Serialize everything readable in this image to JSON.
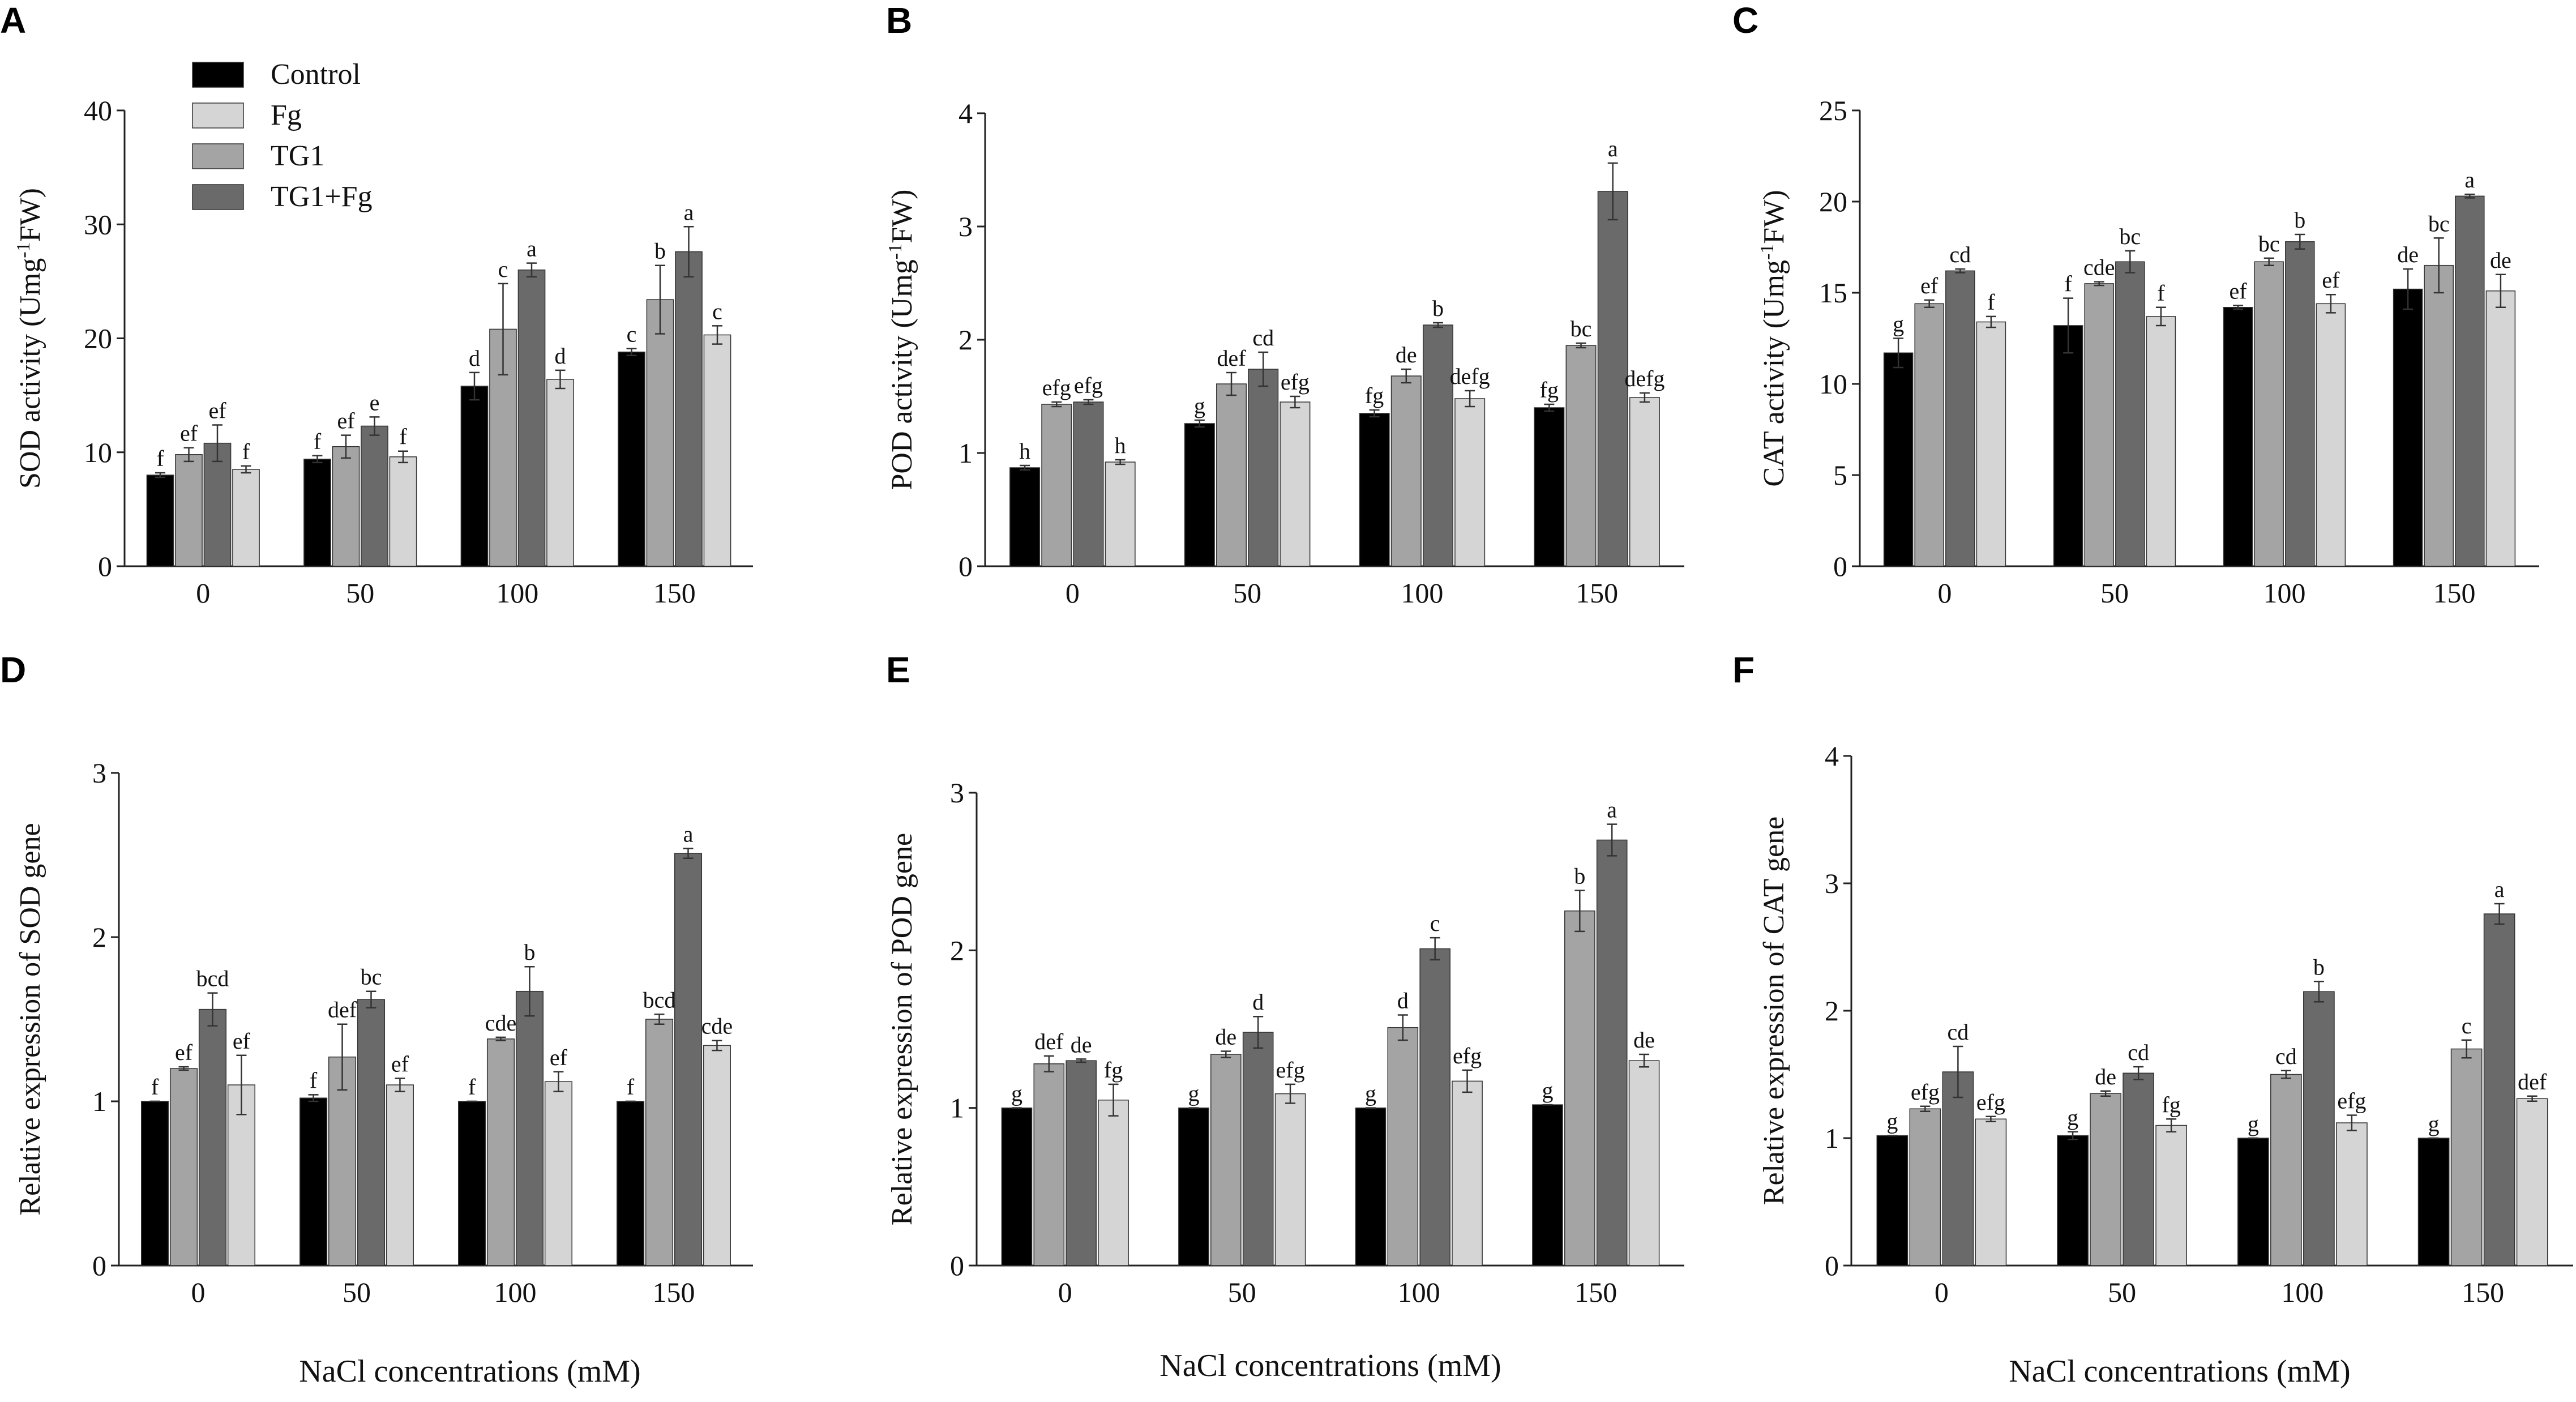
{
  "legend": [
    {
      "label": "Control",
      "color": "#000000"
    },
    {
      "label": "Fg",
      "color": "#d5d5d5"
    },
    {
      "label": "TG1",
      "color": "#a4a4a4"
    },
    {
      "label": "TG1+Fg",
      "color": "#6a6a6a"
    }
  ],
  "x_title": "NaCl concentrations (mM)",
  "chart_data": [
    {
      "type": "bar",
      "panel": "A",
      "title": "",
      "xlabel": "",
      "ylabel": "SOD activity (Umg-1FW)",
      "categories": [
        "0",
        "50",
        "100",
        "150"
      ],
      "ylim": [
        0,
        40
      ],
      "yticks": [
        0,
        10,
        20,
        30,
        40
      ],
      "series": [
        {
          "name": "Control",
          "values": [
            8.0,
            9.4,
            15.8,
            18.8
          ],
          "errors": [
            0.2,
            0.3,
            1.2,
            0.3
          ],
          "letters": [
            "f",
            "f",
            "d",
            "c"
          ]
        },
        {
          "name": "TG1",
          "values": [
            9.8,
            10.5,
            20.8,
            23.4
          ],
          "errors": [
            0.6,
            1.0,
            4.0,
            3.0
          ],
          "letters": [
            "ef",
            "ef",
            "c",
            "b"
          ]
        },
        {
          "name": "TG1+Fg",
          "values": [
            10.8,
            12.3,
            26.0,
            27.6
          ],
          "errors": [
            1.6,
            0.8,
            0.6,
            2.2
          ],
          "letters": [
            "ef",
            "e",
            "a",
            "a"
          ]
        },
        {
          "name": "Fg",
          "values": [
            8.5,
            9.6,
            16.4,
            20.3
          ],
          "errors": [
            0.3,
            0.5,
            0.8,
            0.8
          ],
          "letters": [
            "f",
            "f",
            "d",
            "c"
          ]
        }
      ]
    },
    {
      "type": "bar",
      "panel": "B",
      "title": "",
      "xlabel": "",
      "ylabel": "POD activity (Umg-1FW)",
      "categories": [
        "0",
        "50",
        "100",
        "150"
      ],
      "ylim": [
        0,
        4
      ],
      "yticks": [
        0,
        1,
        2,
        3,
        4
      ],
      "series": [
        {
          "name": "Control",
          "values": [
            0.87,
            1.26,
            1.35,
            1.4
          ],
          "errors": [
            0.02,
            0.03,
            0.03,
            0.03
          ],
          "letters": [
            "h",
            "g",
            "fg",
            "fg"
          ]
        },
        {
          "name": "TG1",
          "values": [
            1.43,
            1.61,
            1.68,
            1.95
          ],
          "errors": [
            0.02,
            0.1,
            0.06,
            0.02
          ],
          "letters": [
            "efg",
            "def",
            "de",
            "bc"
          ]
        },
        {
          "name": "TG1+Fg",
          "values": [
            1.45,
            1.74,
            2.13,
            3.31
          ],
          "errors": [
            0.02,
            0.15,
            0.02,
            0.25
          ],
          "letters": [
            "efg",
            "cd",
            "b",
            "a"
          ]
        },
        {
          "name": "Fg",
          "values": [
            0.92,
            1.45,
            1.48,
            1.49
          ],
          "errors": [
            0.02,
            0.05,
            0.07,
            0.04
          ],
          "letters": [
            "h",
            "efg",
            "defg",
            "defg"
          ]
        }
      ]
    },
    {
      "type": "bar",
      "panel": "C",
      "title": "",
      "xlabel": "",
      "ylabel": "CAT activity (Umg-1FW)",
      "categories": [
        "0",
        "50",
        "100",
        "150"
      ],
      "ylim": [
        0,
        25
      ],
      "yticks": [
        0,
        5,
        10,
        15,
        20,
        25
      ],
      "series": [
        {
          "name": "Control",
          "values": [
            11.7,
            13.2,
            14.2,
            15.2
          ],
          "errors": [
            0.8,
            1.5,
            0.1,
            1.1
          ],
          "letters": [
            "g",
            "f",
            "ef",
            "de"
          ]
        },
        {
          "name": "TG1",
          "values": [
            14.4,
            15.5,
            16.7,
            16.5
          ],
          "errors": [
            0.2,
            0.1,
            0.2,
            1.5
          ],
          "letters": [
            "ef",
            "cde",
            "bc",
            "bc"
          ]
        },
        {
          "name": "TG1+Fg",
          "values": [
            16.2,
            16.7,
            17.8,
            20.3
          ],
          "errors": [
            0.1,
            0.6,
            0.4,
            0.1
          ],
          "letters": [
            "cd",
            "bc",
            "b",
            "a"
          ]
        },
        {
          "name": "Fg",
          "values": [
            13.4,
            13.7,
            14.4,
            15.1
          ],
          "errors": [
            0.3,
            0.5,
            0.5,
            0.9
          ],
          "letters": [
            "f",
            "f",
            "ef",
            "de"
          ]
        }
      ]
    },
    {
      "type": "bar",
      "panel": "D",
      "title": "",
      "xlabel": "NaCl concentrations (mM)",
      "ylabel": "Relative expression of SOD gene",
      "categories": [
        "0",
        "50",
        "100",
        "150"
      ],
      "ylim": [
        0,
        3
      ],
      "yticks": [
        0,
        1,
        2,
        3
      ],
      "series": [
        {
          "name": "Control",
          "values": [
            1.0,
            1.02,
            1.0,
            1.0
          ],
          "errors": [
            0.0,
            0.02,
            0.0,
            0.0
          ],
          "letters": [
            "f",
            "f",
            "f",
            "f"
          ]
        },
        {
          "name": "TG1",
          "values": [
            1.2,
            1.27,
            1.38,
            1.5
          ],
          "errors": [
            0.01,
            0.2,
            0.01,
            0.03
          ],
          "letters": [
            "ef",
            "def",
            "cde",
            "bcd"
          ]
        },
        {
          "name": "TG1+Fg",
          "values": [
            1.56,
            1.62,
            1.67,
            2.51
          ],
          "errors": [
            0.1,
            0.05,
            0.15,
            0.03
          ],
          "letters": [
            "bcd",
            "bc",
            "b",
            "a"
          ]
        },
        {
          "name": "Fg",
          "values": [
            1.1,
            1.1,
            1.12,
            1.34
          ],
          "errors": [
            0.18,
            0.04,
            0.06,
            0.03
          ],
          "letters": [
            "ef",
            "ef",
            "ef",
            "cde"
          ]
        }
      ]
    },
    {
      "type": "bar",
      "panel": "E",
      "title": "",
      "xlabel": "NaCl concentrations (mM)",
      "ylabel": "Relative expression of POD gene",
      "categories": [
        "0",
        "50",
        "100",
        "150"
      ],
      "ylim": [
        0,
        3
      ],
      "yticks": [
        0,
        1,
        2,
        3
      ],
      "series": [
        {
          "name": "Control",
          "values": [
            1.0,
            1.0,
            1.0,
            1.02
          ],
          "errors": [
            0.0,
            0.0,
            0.0,
            0.0
          ],
          "letters": [
            "g",
            "g",
            "g",
            "g"
          ]
        },
        {
          "name": "TG1",
          "values": [
            1.28,
            1.34,
            1.51,
            2.25
          ],
          "errors": [
            0.05,
            0.02,
            0.08,
            0.13
          ],
          "letters": [
            "def",
            "de",
            "d",
            "b"
          ]
        },
        {
          "name": "TG1+Fg",
          "values": [
            1.3,
            1.48,
            2.01,
            2.7
          ],
          "errors": [
            0.01,
            0.1,
            0.07,
            0.1
          ],
          "letters": [
            "de",
            "d",
            "c",
            "a"
          ]
        },
        {
          "name": "Fg",
          "values": [
            1.05,
            1.09,
            1.17,
            1.3
          ],
          "errors": [
            0.1,
            0.06,
            0.07,
            0.04
          ],
          "letters": [
            "fg",
            "efg",
            "efg",
            "de"
          ]
        }
      ]
    },
    {
      "type": "bar",
      "panel": "F",
      "title": "",
      "xlabel": "NaCl concentrations (mM)",
      "ylabel": "Relative  expression of CAT gene",
      "categories": [
        "0",
        "50",
        "100",
        "150"
      ],
      "ylim": [
        0,
        4
      ],
      "yticks": [
        0,
        1,
        2,
        3,
        4
      ],
      "series": [
        {
          "name": "Control",
          "values": [
            1.02,
            1.02,
            1.0,
            1.0
          ],
          "errors": [
            0.0,
            0.03,
            0.0,
            0.0
          ],
          "letters": [
            "g",
            "g",
            "g",
            "g"
          ]
        },
        {
          "name": "TG1",
          "values": [
            1.23,
            1.35,
            1.5,
            1.7
          ],
          "errors": [
            0.02,
            0.02,
            0.03,
            0.07
          ],
          "letters": [
            "efg",
            "de",
            "cd",
            "c"
          ]
        },
        {
          "name": "TG1+Fg",
          "values": [
            1.52,
            1.51,
            2.15,
            2.76
          ],
          "errors": [
            0.2,
            0.05,
            0.08,
            0.08
          ],
          "letters": [
            "cd",
            "cd",
            "b",
            "a"
          ]
        },
        {
          "name": "Fg",
          "values": [
            1.15,
            1.1,
            1.12,
            1.31
          ],
          "errors": [
            0.02,
            0.05,
            0.06,
            0.02
          ],
          "letters": [
            "efg",
            "fg",
            "efg",
            "def"
          ]
        }
      ]
    }
  ]
}
